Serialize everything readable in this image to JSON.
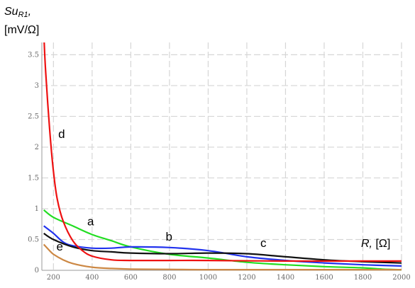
{
  "chart_data": {
    "type": "line",
    "ylabel": {
      "main": "Su",
      "sub": "R1",
      "suffix": ",",
      "unit": "[mV/Ω]"
    },
    "xlabel": {
      "main": "R,",
      "unit": " [Ω]"
    },
    "xlim": [
      140,
      2000
    ],
    "ylim": [
      0,
      3.7
    ],
    "xticks": [
      200,
      400,
      600,
      800,
      1000,
      1200,
      1400,
      1600,
      1800,
      2000
    ],
    "yticks": [
      {
        "value": 0,
        "label": "0"
      },
      {
        "value": 0.5,
        "label": "0.5"
      },
      {
        "value": 1,
        "label": "1"
      },
      {
        "value": 1.5,
        "label": "1.5"
      },
      {
        "value": 2,
        "label": "2"
      },
      {
        "value": 2.5,
        "label": "2.5"
      },
      {
        "value": 3,
        "label": "3"
      },
      {
        "value": 3.5,
        "label": "3.5"
      }
    ],
    "grid": true,
    "series": [
      {
        "name": "a",
        "color": "#22dd22",
        "label_at": [
          375,
          0.73
        ],
        "x": [
          150,
          200,
          300,
          400,
          500,
          600,
          800,
          1000,
          1200,
          1400,
          1600,
          1800,
          1900,
          2000
        ],
        "y": [
          0.98,
          0.86,
          0.72,
          0.58,
          0.48,
          0.38,
          0.26,
          0.2,
          0.13,
          0.09,
          0.06,
          0.04,
          0.02,
          0.01
        ]
      },
      {
        "name": "b",
        "color": "#2233ee",
        "label_at": [
          780,
          0.48
        ],
        "x": [
          150,
          200,
          250,
          300,
          400,
          500,
          600,
          800,
          1000,
          1200,
          1400,
          1600,
          1800,
          2000
        ],
        "y": [
          0.72,
          0.6,
          0.46,
          0.4,
          0.36,
          0.36,
          0.38,
          0.37,
          0.32,
          0.22,
          0.16,
          0.12,
          0.09,
          0.07
        ]
      },
      {
        "name": "c",
        "color": "#111111",
        "label_at": [
          1270,
          0.38
        ],
        "x": [
          150,
          200,
          300,
          400,
          500,
          600,
          800,
          1000,
          1200,
          1400,
          1600,
          1800,
          2000
        ],
        "y": [
          0.6,
          0.5,
          0.38,
          0.32,
          0.3,
          0.28,
          0.27,
          0.28,
          0.27,
          0.22,
          0.17,
          0.14,
          0.12
        ]
      },
      {
        "name": "d",
        "color": "#ee1111",
        "label_at": [
          225,
          2.15
        ],
        "x": [
          152,
          160,
          180,
          200,
          220,
          250,
          300,
          350,
          400,
          500,
          600,
          800,
          1000,
          1400,
          1800,
          2000
        ],
        "y": [
          3.7,
          3.2,
          2.3,
          1.6,
          1.15,
          0.8,
          0.48,
          0.32,
          0.23,
          0.17,
          0.16,
          0.16,
          0.16,
          0.15,
          0.15,
          0.15
        ]
      },
      {
        "name": "e",
        "color": "#cc8844",
        "label_at": [
          215,
          0.32
        ],
        "x": [
          150,
          180,
          200,
          250,
          300,
          400,
          500,
          600,
          800,
          1000,
          1400,
          2000
        ],
        "y": [
          0.42,
          0.32,
          0.26,
          0.17,
          0.11,
          0.05,
          0.03,
          0.02,
          0.015,
          0.01,
          0.01,
          0.01
        ]
      }
    ]
  }
}
